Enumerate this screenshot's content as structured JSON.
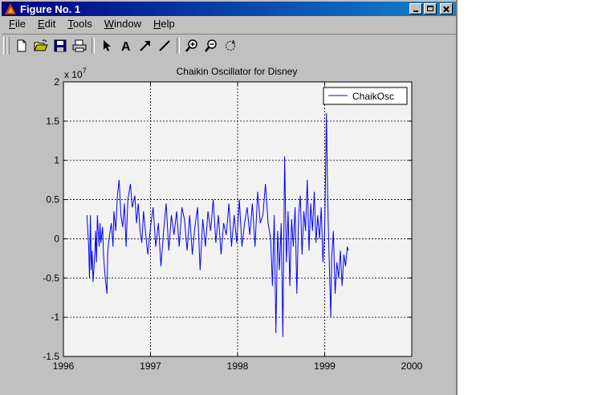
{
  "window": {
    "title": "Figure No. 1"
  },
  "menu": [
    "File",
    "Edit",
    "Tools",
    "Window",
    "Help"
  ],
  "menu_mnemonics": [
    "F",
    "E",
    "T",
    "W",
    "H"
  ],
  "toolbar": {
    "tools": [
      "new-file-icon",
      "open-folder-icon",
      "save-icon",
      "print-icon",
      "select-arrow-icon",
      "insert-text-icon",
      "insert-arrow-icon",
      "insert-line-icon",
      "zoom-in-icon",
      "zoom-out-icon",
      "rotate-3d-icon"
    ],
    "text_tool_label": "A"
  },
  "chart_data": {
    "type": "line",
    "title": "Chaikin Oscillator for Disney",
    "exponent_label": "x 10",
    "exponent_power": "7",
    "xlim": [
      1996,
      2000
    ],
    "ylim": [
      -1.5,
      2
    ],
    "xticks": [
      "1996",
      "1997",
      "1998",
      "1999",
      "2000"
    ],
    "yticks": [
      "-1.5",
      "-1",
      "-0.5",
      "0",
      "0.5",
      "1",
      "1.5",
      "2"
    ],
    "grid": true,
    "legend_position": "top-right",
    "series": [
      {
        "name": "ChaikOsc",
        "color": "#0000ff",
        "x": [
          1996.27,
          1996.29,
          1996.3,
          1996.31,
          1996.32,
          1996.33,
          1996.34,
          1996.36,
          1996.37,
          1996.38,
          1996.39,
          1996.41,
          1996.42,
          1996.43,
          1996.45,
          1996.46,
          1996.48,
          1996.5,
          1996.51,
          1996.53,
          1996.55,
          1996.57,
          1996.58,
          1996.6,
          1996.62,
          1996.64,
          1996.66,
          1996.68,
          1996.7,
          1996.72,
          1996.74,
          1996.77,
          1996.79,
          1996.82,
          1996.84,
          1996.86,
          1996.88,
          1996.9,
          1996.92,
          1996.95,
          1996.97,
          1997.0,
          1997.03,
          1997.06,
          1997.09,
          1997.12,
          1997.15,
          1997.18,
          1997.21,
          1997.24,
          1997.27,
          1997.3,
          1997.33,
          1997.36,
          1997.39,
          1997.42,
          1997.45,
          1997.48,
          1997.51,
          1997.54,
          1997.57,
          1997.6,
          1997.63,
          1997.66,
          1997.69,
          1997.72,
          1997.75,
          1997.78,
          1997.81,
          1997.84,
          1997.87,
          1997.9,
          1997.93,
          1997.96,
          1997.99,
          1998.02,
          1998.05,
          1998.08,
          1998.11,
          1998.14,
          1998.17,
          1998.2,
          1998.23,
          1998.26,
          1998.29,
          1998.32,
          1998.35,
          1998.38,
          1998.4,
          1998.42,
          1998.44,
          1998.46,
          1998.48,
          1998.5,
          1998.52,
          1998.54,
          1998.56,
          1998.58,
          1998.6,
          1998.62,
          1998.64,
          1998.66,
          1998.68,
          1998.7,
          1998.72,
          1998.74,
          1998.76,
          1998.78,
          1998.8,
          1998.82,
          1998.84,
          1998.86,
          1998.88,
          1998.9,
          1998.92,
          1998.94,
          1998.96,
          1998.98,
          1999.0,
          1999.02,
          1999.03,
          1999.04,
          1999.06,
          1999.07,
          1999.08,
          1999.1,
          1999.12,
          1999.14,
          1999.16,
          1999.18,
          1999.2,
          1999.22,
          1999.24,
          1999.26,
          1999.27
        ],
        "y": [
          0.3,
          -0.1,
          -0.5,
          0.3,
          -0.4,
          -0.15,
          -0.55,
          -0.2,
          0.1,
          -0.3,
          0.3,
          -0.1,
          0.2,
          -0.05,
          0.15,
          -0.2,
          -0.5,
          -0.7,
          -0.15,
          0.05,
          0.2,
          -0.1,
          0.35,
          0.1,
          0.55,
          0.75,
          0.3,
          0.15,
          0.45,
          -0.1,
          0.5,
          0.7,
          0.4,
          0.55,
          0.2,
          0.45,
          0.1,
          -0.05,
          0.35,
          0.0,
          -0.2,
          0.15,
          0.4,
          -0.1,
          0.2,
          -0.35,
          0.1,
          0.45,
          -0.15,
          0.3,
          0.05,
          0.35,
          -0.1,
          0.4,
          0.25,
          -0.15,
          0.3,
          -0.2,
          0.15,
          0.4,
          -0.4,
          0.25,
          -0.1,
          0.35,
          0.1,
          0.5,
          -0.05,
          0.3,
          -0.2,
          0.2,
          0.05,
          0.45,
          -0.1,
          0.3,
          -0.05,
          0.5,
          -0.1,
          0.2,
          0.4,
          0.05,
          0.45,
          -0.1,
          0.6,
          0.2,
          0.3,
          0.7,
          0.2,
          0.0,
          -0.6,
          0.3,
          -1.2,
          0.1,
          -0.4,
          0.2,
          -1.25,
          1.05,
          -0.3,
          0.35,
          -0.6,
          0.25,
          -0.1,
          0.4,
          -0.7,
          0.3,
          0.55,
          -0.2,
          0.35,
          0.1,
          0.75,
          -0.15,
          0.45,
          0.1,
          0.6,
          -0.05,
          0.3,
          0.0,
          0.4,
          -0.3,
          0.1,
          1.6,
          0.8,
          0.25,
          -0.6,
          -1.0,
          -0.25,
          0.1,
          -0.7,
          -0.3,
          -0.5,
          -0.15,
          -0.6,
          -0.2,
          -0.35,
          -0.1,
          -0.15
        ]
      }
    ]
  }
}
